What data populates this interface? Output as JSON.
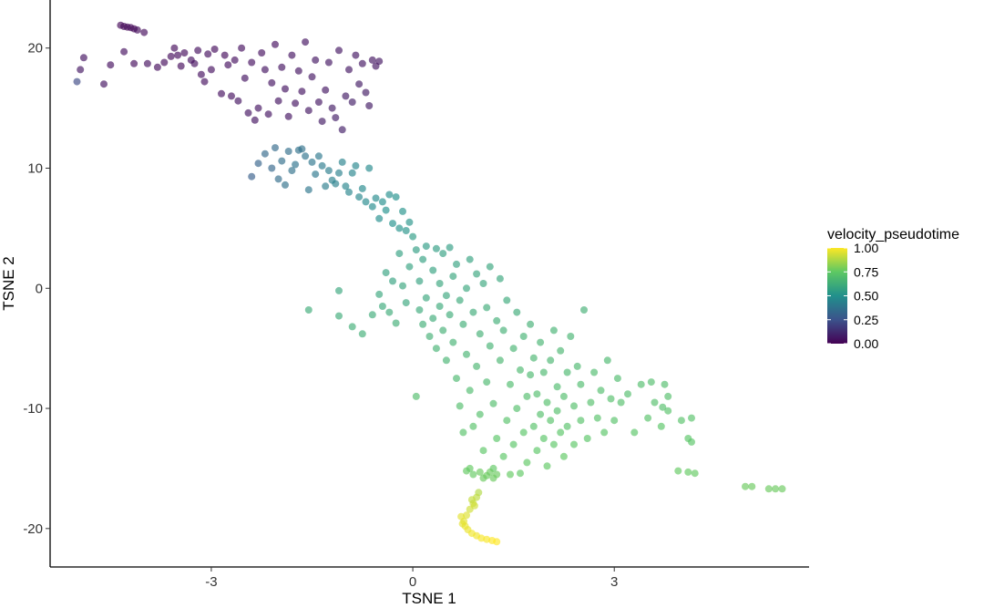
{
  "chart_data": {
    "type": "scatter",
    "title": "",
    "xlabel": "TSNE 1",
    "ylabel": "TSNE 2",
    "xlim": [
      -5.4,
      5.9
    ],
    "ylim": [
      -23.2,
      24
    ],
    "xticks": [
      -3,
      0,
      3
    ],
    "xtick_labels": [
      "-3",
      "0",
      "3"
    ],
    "yticks": [
      -20,
      -10,
      0,
      10,
      20
    ],
    "ytick_labels": [
      "-20",
      "-10",
      "0",
      "10",
      "20"
    ],
    "grid": false,
    "point_alpha": 0.65,
    "color_variable": "velocity_pseudotime",
    "colorscale": "viridis",
    "colorscale_stops": [
      "#440154",
      "#3b528b",
      "#21908c",
      "#5dc863",
      "#fde725"
    ],
    "legend": {
      "title": "velocity_pseudotime",
      "placement": "right",
      "ticks": [
        1.0,
        0.75,
        0.5,
        0.25,
        0.0
      ],
      "tick_labels": [
        "1.00",
        "0.75",
        "0.50",
        "0.25",
        "0.00"
      ]
    },
    "points": [
      [
        -4.35,
        21.9,
        0.02
      ],
      [
        -4.3,
        21.8,
        0.02
      ],
      [
        -4.25,
        21.75,
        0.02
      ],
      [
        -4.2,
        21.7,
        0.02
      ],
      [
        -4.15,
        21.6,
        0.02
      ],
      [
        -4.1,
        21.5,
        0.03
      ],
      [
        -4.0,
        21.3,
        0.03
      ],
      [
        -5.0,
        17.2,
        0.22
      ],
      [
        -4.95,
        18.2,
        0.06
      ],
      [
        -4.9,
        19.2,
        0.05
      ],
      [
        -4.6,
        17.0,
        0.05
      ],
      [
        -4.5,
        18.6,
        0.04
      ],
      [
        -4.3,
        19.7,
        0.04
      ],
      [
        -4.15,
        18.7,
        0.03
      ],
      [
        -3.95,
        18.7,
        0.04
      ],
      [
        -3.8,
        18.4,
        0.03
      ],
      [
        -3.7,
        18.8,
        0.03
      ],
      [
        -3.6,
        19.3,
        0.03
      ],
      [
        -3.55,
        20.0,
        0.03
      ],
      [
        -3.5,
        19.4,
        0.03
      ],
      [
        -3.45,
        18.5,
        0.03
      ],
      [
        -3.4,
        19.6,
        0.03
      ],
      [
        -3.3,
        19.0,
        0.04
      ],
      [
        -3.25,
        18.7,
        0.04
      ],
      [
        -3.2,
        19.8,
        0.04
      ],
      [
        -3.15,
        17.8,
        0.04
      ],
      [
        -3.1,
        17.2,
        0.04
      ],
      [
        -3.05,
        19.5,
        0.04
      ],
      [
        -3.0,
        18.2,
        0.04
      ],
      [
        -2.95,
        19.9,
        0.03
      ],
      [
        -2.85,
        16.2,
        0.04
      ],
      [
        -2.8,
        19.4,
        0.03
      ],
      [
        -2.75,
        18.6,
        0.04
      ],
      [
        -2.7,
        16.0,
        0.04
      ],
      [
        -2.65,
        19.0,
        0.04
      ],
      [
        -2.6,
        15.6,
        0.05
      ],
      [
        -2.55,
        20.0,
        0.04
      ],
      [
        -2.5,
        17.5,
        0.05
      ],
      [
        -2.45,
        14.6,
        0.05
      ],
      [
        -2.4,
        18.8,
        0.04
      ],
      [
        -2.35,
        14.0,
        0.05
      ],
      [
        -2.3,
        15.0,
        0.05
      ],
      [
        -2.25,
        19.6,
        0.04
      ],
      [
        -2.2,
        18.2,
        0.05
      ],
      [
        -2.15,
        14.5,
        0.05
      ],
      [
        -2.1,
        17.1,
        0.05
      ],
      [
        -2.05,
        20.3,
        0.04
      ],
      [
        -2.0,
        15.6,
        0.05
      ],
      [
        -1.95,
        18.4,
        0.05
      ],
      [
        -1.9,
        16.6,
        0.05
      ],
      [
        -1.85,
        14.3,
        0.05
      ],
      [
        -1.8,
        19.4,
        0.05
      ],
      [
        -1.75,
        15.4,
        0.05
      ],
      [
        -1.7,
        18.1,
        0.05
      ],
      [
        -1.65,
        16.4,
        0.05
      ],
      [
        -1.6,
        20.5,
        0.05
      ],
      [
        -1.55,
        14.8,
        0.06
      ],
      [
        -1.5,
        17.6,
        0.06
      ],
      [
        -1.45,
        19.0,
        0.06
      ],
      [
        -1.4,
        15.5,
        0.06
      ],
      [
        -1.35,
        13.9,
        0.07
      ],
      [
        -1.3,
        16.5,
        0.06
      ],
      [
        -1.25,
        18.8,
        0.06
      ],
      [
        -1.2,
        15.0,
        0.07
      ],
      [
        -1.15,
        14.2,
        0.08
      ],
      [
        -1.1,
        19.8,
        0.06
      ],
      [
        -1.05,
        13.2,
        0.08
      ],
      [
        -1.0,
        16.0,
        0.07
      ],
      [
        -0.95,
        18.2,
        0.06
      ],
      [
        -0.9,
        15.5,
        0.08
      ],
      [
        -0.85,
        19.4,
        0.06
      ],
      [
        -0.8,
        17.0,
        0.07
      ],
      [
        -0.75,
        18.7,
        0.06
      ],
      [
        -0.7,
        16.3,
        0.07
      ],
      [
        -0.65,
        15.2,
        0.07
      ],
      [
        -0.6,
        19.0,
        0.06
      ],
      [
        -0.55,
        18.5,
        0.06
      ],
      [
        -0.5,
        18.9,
        0.06
      ],
      [
        -2.4,
        9.3,
        0.3
      ],
      [
        -2.3,
        10.4,
        0.32
      ],
      [
        -2.2,
        11.2,
        0.34
      ],
      [
        -2.1,
        10.0,
        0.33
      ],
      [
        -2.05,
        11.7,
        0.34
      ],
      [
        -2.0,
        9.1,
        0.35
      ],
      [
        -1.95,
        10.6,
        0.36
      ],
      [
        -1.9,
        8.6,
        0.37
      ],
      [
        -1.85,
        11.4,
        0.36
      ],
      [
        -1.8,
        9.8,
        0.37
      ],
      [
        -1.75,
        10.3,
        0.38
      ],
      [
        -1.7,
        11.5,
        0.37
      ],
      [
        -1.65,
        11.6,
        0.37
      ],
      [
        -1.6,
        11.0,
        0.38
      ],
      [
        -1.55,
        8.2,
        0.39
      ],
      [
        -1.5,
        10.5,
        0.39
      ],
      [
        -1.45,
        9.5,
        0.4
      ],
      [
        -1.4,
        11.0,
        0.4
      ],
      [
        -1.35,
        10.2,
        0.41
      ],
      [
        -1.3,
        8.5,
        0.42
      ],
      [
        -1.25,
        9.8,
        0.42
      ],
      [
        -1.2,
        9.0,
        0.43
      ],
      [
        -1.15,
        8.7,
        0.43
      ],
      [
        -1.1,
        9.6,
        0.43
      ],
      [
        -1.05,
        10.5,
        0.44
      ],
      [
        -1.0,
        8.5,
        0.45
      ],
      [
        -0.95,
        8.0,
        0.45
      ],
      [
        -0.9,
        9.6,
        0.45
      ],
      [
        -0.85,
        10.2,
        0.46
      ],
      [
        -0.8,
        7.6,
        0.46
      ],
      [
        -0.75,
        8.3,
        0.47
      ],
      [
        -0.7,
        7.2,
        0.47
      ],
      [
        -0.65,
        10.0,
        0.47
      ],
      [
        -0.6,
        6.8,
        0.48
      ],
      [
        -0.55,
        7.5,
        0.48
      ],
      [
        -0.5,
        5.8,
        0.49
      ],
      [
        -0.45,
        7.2,
        0.49
      ],
      [
        -0.4,
        6.5,
        0.5
      ],
      [
        -0.35,
        7.8,
        0.49
      ],
      [
        -0.3,
        5.4,
        0.5
      ],
      [
        -0.25,
        7.6,
        0.5
      ],
      [
        -0.2,
        5.0,
        0.51
      ],
      [
        -0.15,
        6.4,
        0.51
      ],
      [
        -0.1,
        4.8,
        0.52
      ],
      [
        -0.05,
        5.5,
        0.52
      ],
      [
        -1.55,
        -1.8,
        0.62
      ],
      [
        -1.1,
        -0.2,
        0.6
      ],
      [
        -1.1,
        -2.3,
        0.62
      ],
      [
        -0.9,
        -3.2,
        0.63
      ],
      [
        -0.75,
        -3.8,
        0.63
      ],
      [
        -0.6,
        -2.2,
        0.62
      ],
      [
        -0.5,
        -0.5,
        0.6
      ],
      [
        -0.45,
        -1.5,
        0.61
      ],
      [
        -0.4,
        1.3,
        0.58
      ],
      [
        -0.35,
        -2.0,
        0.62
      ],
      [
        -0.3,
        0.6,
        0.58
      ],
      [
        -0.25,
        -2.9,
        0.63
      ],
      [
        -0.2,
        2.9,
        0.57
      ],
      [
        -0.15,
        0.2,
        0.59
      ],
      [
        -0.1,
        -1.2,
        0.6
      ],
      [
        -0.05,
        1.8,
        0.58
      ],
      [
        0.0,
        4.3,
        0.55
      ],
      [
        0.05,
        3.2,
        0.56
      ],
      [
        0.05,
        -9.0,
        0.7
      ],
      [
        0.1,
        0.6,
        0.58
      ],
      [
        0.1,
        -1.8,
        0.61
      ],
      [
        0.15,
        2.4,
        0.57
      ],
      [
        0.15,
        -3.0,
        0.63
      ],
      [
        0.2,
        3.5,
        0.55
      ],
      [
        0.2,
        -0.8,
        0.6
      ],
      [
        0.25,
        -4.0,
        0.64
      ],
      [
        0.3,
        1.5,
        0.58
      ],
      [
        0.3,
        -2.5,
        0.62
      ],
      [
        0.35,
        3.3,
        0.56
      ],
      [
        0.35,
        -5.0,
        0.65
      ],
      [
        0.4,
        0.4,
        0.59
      ],
      [
        0.4,
        -1.5,
        0.61
      ],
      [
        0.45,
        2.9,
        0.57
      ],
      [
        0.45,
        -3.5,
        0.64
      ],
      [
        0.5,
        -0.6,
        0.6
      ],
      [
        0.5,
        -6.0,
        0.66
      ],
      [
        0.55,
        3.4,
        0.56
      ],
      [
        0.55,
        -2.2,
        0.62
      ],
      [
        0.6,
        1.0,
        0.59
      ],
      [
        0.6,
        -4.5,
        0.65
      ],
      [
        0.65,
        -7.5,
        0.68
      ],
      [
        0.65,
        2.0,
        0.58
      ],
      [
        0.7,
        -1.0,
        0.61
      ],
      [
        0.7,
        -9.8,
        0.7
      ],
      [
        0.75,
        -3.0,
        0.63
      ],
      [
        0.75,
        -12.0,
        0.72
      ],
      [
        0.8,
        0.0,
        0.6
      ],
      [
        0.8,
        -5.5,
        0.66
      ],
      [
        0.85,
        2.4,
        0.58
      ],
      [
        0.85,
        -8.5,
        0.69
      ],
      [
        0.9,
        -2.0,
        0.62
      ],
      [
        0.9,
        -11.5,
        0.72
      ],
      [
        0.95,
        1.2,
        0.59
      ],
      [
        0.95,
        -6.5,
        0.67
      ],
      [
        1.0,
        -3.8,
        0.64
      ],
      [
        1.0,
        -10.5,
        0.71
      ],
      [
        1.05,
        0.4,
        0.6
      ],
      [
        1.05,
        -13.5,
        0.74
      ],
      [
        1.1,
        -1.6,
        0.62
      ],
      [
        1.1,
        -7.8,
        0.68
      ],
      [
        1.15,
        1.8,
        0.59
      ],
      [
        1.15,
        -4.8,
        0.65
      ],
      [
        1.2,
        -9.6,
        0.7
      ],
      [
        1.2,
        -15.0,
        0.75
      ],
      [
        1.25,
        -2.7,
        0.63
      ],
      [
        1.25,
        -12.5,
        0.73
      ],
      [
        1.3,
        0.8,
        0.6
      ],
      [
        1.3,
        -6.0,
        0.67
      ],
      [
        1.35,
        -14.0,
        0.74
      ],
      [
        1.35,
        -3.5,
        0.64
      ],
      [
        1.4,
        -11.0,
        0.72
      ],
      [
        1.4,
        -1.0,
        0.61
      ],
      [
        1.45,
        -8.0,
        0.69
      ],
      [
        1.45,
        -15.5,
        0.76
      ],
      [
        1.5,
        -5.0,
        0.66
      ],
      [
        1.5,
        -13.0,
        0.73
      ],
      [
        1.55,
        -2.0,
        0.62
      ],
      [
        1.55,
        -10.0,
        0.71
      ],
      [
        1.6,
        -6.8,
        0.68
      ],
      [
        1.6,
        -15.4,
        0.75
      ],
      [
        1.65,
        -4.0,
        0.65
      ],
      [
        1.65,
        -12.0,
        0.73
      ],
      [
        1.7,
        -9.0,
        0.7
      ],
      [
        1.7,
        -14.5,
        0.75
      ],
      [
        1.75,
        -7.2,
        0.68
      ],
      [
        1.75,
        -3.0,
        0.64
      ],
      [
        1.8,
        -11.5,
        0.72
      ],
      [
        1.8,
        -5.8,
        0.67
      ],
      [
        1.85,
        -13.5,
        0.74
      ],
      [
        1.85,
        -8.8,
        0.7
      ],
      [
        1.9,
        -10.5,
        0.71
      ],
      [
        1.9,
        -4.5,
        0.66
      ],
      [
        1.95,
        -12.5,
        0.73
      ],
      [
        1.95,
        -7.0,
        0.68
      ],
      [
        2.0,
        -9.5,
        0.71
      ],
      [
        2.0,
        -14.8,
        0.75
      ],
      [
        2.05,
        -6.0,
        0.67
      ],
      [
        2.05,
        -11.0,
        0.72
      ],
      [
        2.1,
        -3.5,
        0.65
      ],
      [
        2.1,
        -13.0,
        0.74
      ],
      [
        2.15,
        -8.2,
        0.69
      ],
      [
        2.15,
        -10.2,
        0.71
      ],
      [
        2.2,
        -5.2,
        0.67
      ],
      [
        2.2,
        -12.0,
        0.73
      ],
      [
        2.25,
        -9.0,
        0.7
      ],
      [
        2.25,
        -14.0,
        0.75
      ],
      [
        2.3,
        -7.0,
        0.68
      ],
      [
        2.3,
        -11.5,
        0.72
      ],
      [
        2.35,
        -4.0,
        0.66
      ],
      [
        2.4,
        -9.8,
        0.71
      ],
      [
        2.4,
        -13.0,
        0.74
      ],
      [
        2.45,
        -6.5,
        0.68
      ],
      [
        2.5,
        -11.0,
        0.72
      ],
      [
        2.5,
        -8.0,
        0.69
      ],
      [
        2.55,
        -1.8,
        0.64
      ],
      [
        2.6,
        -12.5,
        0.73
      ],
      [
        2.65,
        -9.5,
        0.71
      ],
      [
        2.7,
        -7.0,
        0.69
      ],
      [
        2.75,
        -10.8,
        0.72
      ],
      [
        2.8,
        -8.5,
        0.7
      ],
      [
        2.85,
        -12.0,
        0.73
      ],
      [
        2.9,
        -6.0,
        0.68
      ],
      [
        2.95,
        -9.2,
        0.71
      ],
      [
        3.0,
        -11.0,
        0.72
      ],
      [
        3.05,
        -7.5,
        0.69
      ],
      [
        3.1,
        -9.5,
        0.71
      ],
      [
        3.2,
        -8.8,
        0.7
      ],
      [
        3.3,
        -12.0,
        0.73
      ],
      [
        3.4,
        -8.0,
        0.7
      ],
      [
        3.5,
        -10.8,
        0.72
      ],
      [
        3.55,
        -7.8,
        0.7
      ],
      [
        3.6,
        -9.5,
        0.71
      ],
      [
        3.7,
        -11.5,
        0.73
      ],
      [
        3.8,
        -9.0,
        0.71
      ],
      [
        4.0,
        -11.0,
        0.72
      ],
      [
        3.75,
        -8.0,
        0.7
      ],
      [
        3.72,
        -9.9,
        0.71
      ],
      [
        3.8,
        -10.2,
        0.72
      ],
      [
        4.15,
        -10.8,
        0.72
      ],
      [
        4.1,
        -12.5,
        0.73
      ],
      [
        4.15,
        -12.8,
        0.73
      ],
      [
        3.95,
        -15.2,
        0.76
      ],
      [
        4.1,
        -15.3,
        0.76
      ],
      [
        4.2,
        -15.4,
        0.76
      ],
      [
        4.95,
        -16.5,
        0.77
      ],
      [
        5.05,
        -16.5,
        0.77
      ],
      [
        5.3,
        -16.7,
        0.77
      ],
      [
        5.4,
        -16.7,
        0.77
      ],
      [
        5.5,
        -16.7,
        0.77
      ],
      [
        0.8,
        -15.2,
        0.76
      ],
      [
        0.85,
        -15.0,
        0.76
      ],
      [
        0.9,
        -15.5,
        0.76
      ],
      [
        1.0,
        -15.3,
        0.77
      ],
      [
        1.05,
        -15.8,
        0.77
      ],
      [
        1.1,
        -15.6,
        0.77
      ],
      [
        1.15,
        -15.3,
        0.77
      ],
      [
        1.2,
        -15.8,
        0.77
      ],
      [
        1.25,
        -15.5,
        0.77
      ],
      [
        0.98,
        -17.0,
        0.88
      ],
      [
        0.95,
        -17.4,
        0.9
      ],
      [
        0.9,
        -17.9,
        0.92
      ],
      [
        0.85,
        -18.4,
        0.93
      ],
      [
        0.8,
        -18.9,
        0.95
      ],
      [
        0.76,
        -19.4,
        0.96
      ],
      [
        0.78,
        -19.8,
        0.97
      ],
      [
        0.82,
        -20.1,
        0.97
      ],
      [
        0.88,
        -20.4,
        0.98
      ],
      [
        0.95,
        -20.6,
        0.98
      ],
      [
        1.02,
        -20.8,
        0.99
      ],
      [
        1.1,
        -20.9,
        0.99
      ],
      [
        1.18,
        -21.0,
        1.0
      ],
      [
        1.25,
        -21.1,
        1.0
      ],
      [
        0.72,
        -19.0,
        0.96
      ],
      [
        0.74,
        -19.6,
        0.96
      ],
      [
        0.88,
        -17.6,
        0.91
      ],
      [
        0.92,
        -18.1,
        0.93
      ]
    ]
  }
}
